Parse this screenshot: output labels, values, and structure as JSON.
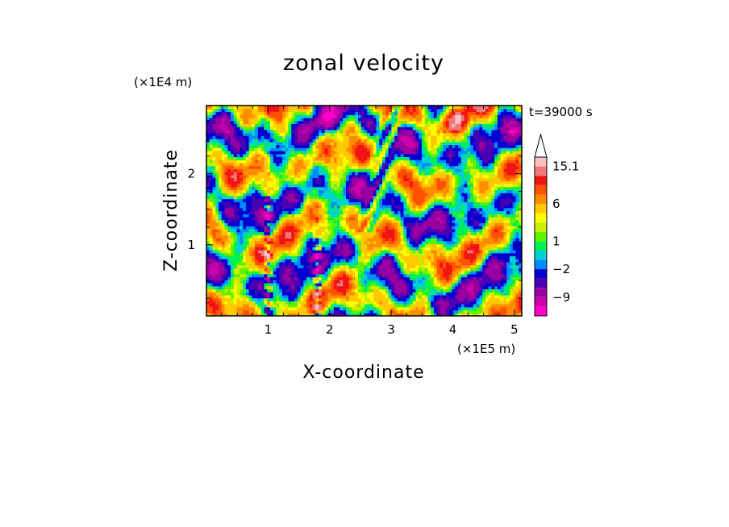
{
  "chart_data": {
    "type": "heatmap",
    "title": "zonal velocity",
    "xlabel": "X-coordinate",
    "ylabel": "Z-coordinate",
    "x_unit": "(×1E5 m)",
    "y_unit": "(×1E4 m)",
    "time_label": "t=39000 s",
    "xlim": [
      0,
      5.12
    ],
    "ylim": [
      0,
      2.96
    ],
    "x_ticks": [
      "1",
      "2",
      "3",
      "4",
      "5"
    ],
    "y_ticks": [
      "1",
      "2"
    ],
    "x_tick_values": [
      1,
      2,
      3,
      4,
      5
    ],
    "y_tick_values": [
      1,
      2
    ],
    "colorbar": {
      "levels": [
        -15,
        -12,
        -9,
        -6,
        -4,
        -2,
        -1,
        0,
        1,
        2,
        3,
        4,
        6,
        8,
        10,
        12.6,
        15.1
      ],
      "labels": [
        "15.1",
        "6",
        "1",
        "−2",
        "−9"
      ],
      "label_values": [
        15.1,
        6,
        1,
        -2,
        -9
      ],
      "colors": [
        "#ff00cc",
        "#cc00aa",
        "#9900a0",
        "#4b00b4",
        "#0000d0",
        "#008cff",
        "#00d2d2",
        "#00f050",
        "#60f000",
        "#c8f000",
        "#ffff00",
        "#ffc800",
        "#ff8c00",
        "#ff5000",
        "#f01414",
        "#f07878",
        "#ffc0c0"
      ],
      "extend_top": true
    },
    "grid": false
  }
}
